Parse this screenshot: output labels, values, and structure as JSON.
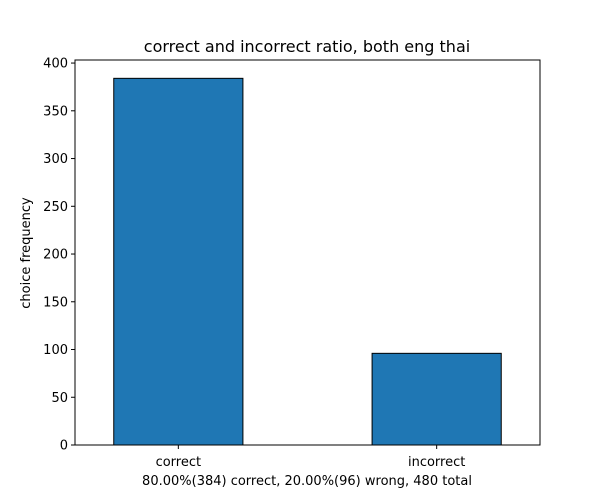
{
  "chart_data": {
    "type": "bar",
    "title": "correct and incorrect ratio, both eng thai",
    "xlabel": "80.00%(384) correct, 20.00%(96) wrong, 480 total",
    "ylabel": "choice frequency",
    "categories": [
      "correct",
      "incorrect"
    ],
    "values": [
      384,
      96
    ],
    "ylim": [
      0,
      403.2
    ],
    "yticks": [
      "0",
      "50",
      "100",
      "150",
      "200",
      "250",
      "300",
      "350",
      "400"
    ],
    "bar_color": "#1f77b4",
    "edge_color": "#000000",
    "grid": false
  }
}
